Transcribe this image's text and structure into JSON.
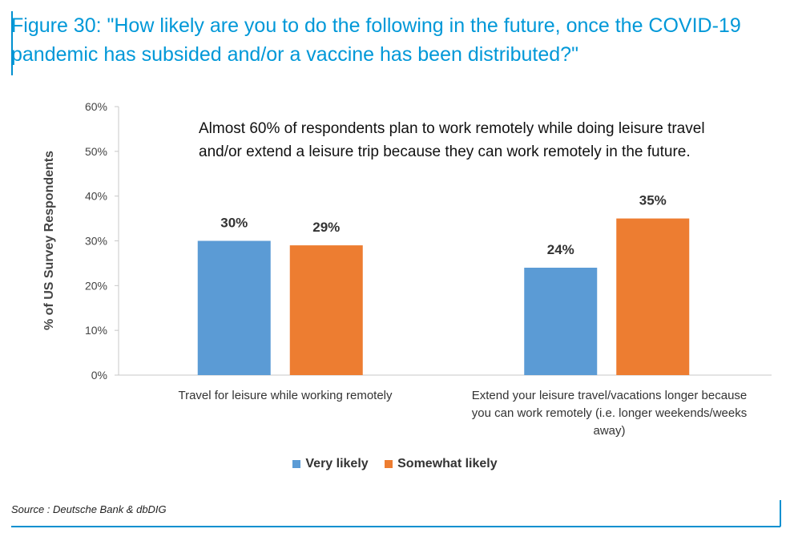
{
  "figure": {
    "title": "Figure 30: \"How likely are you to do the following in the future, once the COVID-19 pandemic has subsided and/or a vaccine has been distributed?\"",
    "source": "Source : Deutsche Bank & dbDIG"
  },
  "chart_data": {
    "type": "bar",
    "categories": [
      "Travel for leisure while working remotely",
      "Extend your leisure travel/vacations longer because you can work remotely (i.e. longer weekends/weeks away)"
    ],
    "series": [
      {
        "name": "Very likely",
        "values": [
          30,
          24
        ],
        "color": "#5b9bd5"
      },
      {
        "name": "Somewhat likely",
        "values": [
          29,
          35
        ],
        "color": "#ed7d31"
      }
    ],
    "value_labels": [
      [
        "30%",
        "24%"
      ],
      [
        "29%",
        "35%"
      ]
    ],
    "ylabel": "% of US Survey Respondents",
    "ylim": [
      0,
      60
    ],
    "yticks": [
      "0%",
      "10%",
      "20%",
      "30%",
      "40%",
      "50%",
      "60%"
    ],
    "annotation": "Almost 60% of respondents plan to work remotely while doing leisure travel and/or extend a leisure trip because they can work remotely in the future.",
    "legend_position": "bottom",
    "grid": false
  }
}
